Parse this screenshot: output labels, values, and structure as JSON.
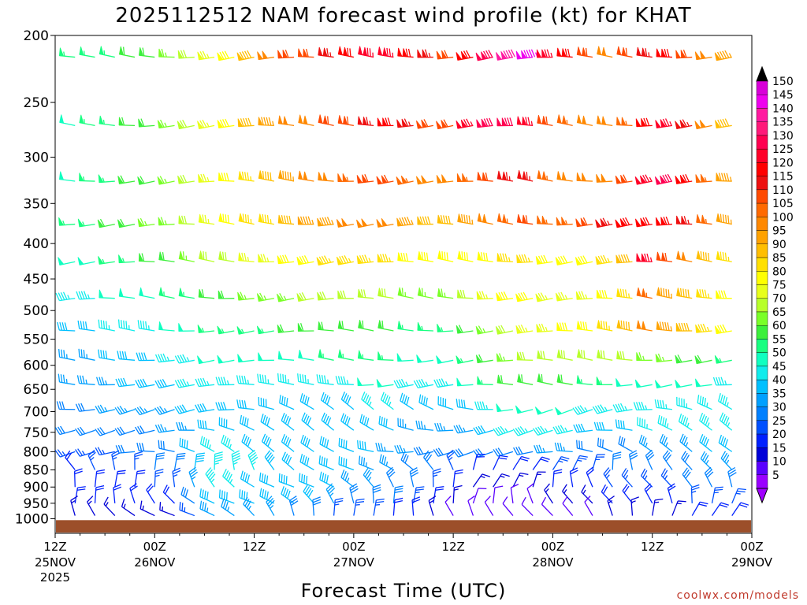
{
  "chart_data": {
    "type": "wind-profile",
    "title": "2025112512 NAM forecast wind profile (kt) for KHAT",
    "xlabel": "Forecast Time (UTC)",
    "credit": "coolwx.com/models",
    "y_ticks": [
      "200",
      "250",
      "300",
      "350",
      "400",
      "450",
      "500",
      "550",
      "600",
      "650",
      "700",
      "750",
      "800",
      "850",
      "900",
      "950",
      "1000"
    ],
    "x_ticks": [
      {
        "time": "12Z",
        "date": "25NOV",
        "year": "2025"
      },
      {
        "time": "00Z",
        "date": "26NOV",
        "year": ""
      },
      {
        "time": "12Z",
        "date": "",
        "year": ""
      },
      {
        "time": "00Z",
        "date": "27NOV",
        "year": ""
      },
      {
        "time": "12Z",
        "date": "",
        "year": ""
      },
      {
        "time": "00Z",
        "date": "28NOV",
        "year": ""
      },
      {
        "time": "12Z",
        "date": "",
        "year": ""
      },
      {
        "time": "00Z",
        "date": "29NOV",
        "year": ""
      }
    ],
    "colorbar_labels": [
      "150",
      "145",
      "140",
      "135",
      "130",
      "125",
      "120",
      "115",
      "110",
      "105",
      "100",
      "95",
      "90",
      "85",
      "80",
      "75",
      "70",
      "65",
      "60",
      "55",
      "50",
      "45",
      "40",
      "35",
      "30",
      "25",
      "20",
      "15",
      "10",
      "5"
    ],
    "colorbar_colors": [
      "#d800d8",
      "#ee00ee",
      "#ff1aa0",
      "#ff1a7a",
      "#ff0050",
      "#ff0028",
      "#ff0000",
      "#ee1010",
      "#ff4a00",
      "#ff6a00",
      "#ff8800",
      "#ffa200",
      "#ffbe00",
      "#ffe000",
      "#ffff00",
      "#e8ff1a",
      "#b8ff2a",
      "#7aff28",
      "#3cf03c",
      "#18ff80",
      "#10ffc0",
      "#10ecec",
      "#00c0ff",
      "#00a0ff",
      "#0080ff",
      "#0050ff",
      "#0020ff",
      "#0000d8",
      "#5a00ff",
      "#9a00ff"
    ],
    "y_range": [
      200,
      1050
    ],
    "x_range_hours": [
      0,
      84
    ],
    "pressure_levels": [
      215,
      270,
      325,
      375,
      425,
      480,
      535,
      590,
      640,
      695,
      745,
      800,
      850,
      900,
      950,
      990
    ],
    "speed_profile_kt": [
      [
        50,
        55,
        55,
        55,
        60,
        60,
        65,
        70,
        75,
        80,
        90,
        100,
        110,
        110,
        115,
        120,
        125,
        125,
        120,
        115,
        110,
        120,
        130,
        140,
        145,
        125,
        120,
        110,
        100,
        110,
        115,
        120,
        110,
        100,
        95,
        90
      ],
      [
        50,
        50,
        55,
        55,
        60,
        60,
        65,
        70,
        75,
        80,
        90,
        95,
        100,
        100,
        110,
        110,
        115,
        120,
        115,
        110,
        110,
        125,
        130,
        130,
        125,
        110,
        105,
        100,
        100,
        105,
        120,
        125,
        115,
        100,
        90,
        85
      ],
      [
        50,
        50,
        55,
        55,
        60,
        60,
        65,
        70,
        75,
        80,
        85,
        90,
        95,
        100,
        100,
        105,
        110,
        110,
        105,
        100,
        100,
        105,
        110,
        115,
        115,
        105,
        100,
        100,
        100,
        110,
        125,
        130,
        120,
        105,
        95,
        90
      ],
      [
        55,
        55,
        55,
        60,
        60,
        65,
        65,
        70,
        75,
        80,
        85,
        85,
        90,
        95,
        95,
        100,
        100,
        100,
        95,
        90,
        90,
        95,
        100,
        105,
        110,
        105,
        105,
        110,
        115,
        120,
        120,
        120,
        115,
        105,
        95,
        90
      ],
      [
        50,
        50,
        50,
        55,
        55,
        60,
        60,
        65,
        70,
        70,
        75,
        75,
        80,
        80,
        85,
        85,
        85,
        85,
        80,
        80,
        80,
        80,
        80,
        85,
        85,
        80,
        80,
        80,
        85,
        90,
        125,
        110,
        100,
        90,
        85,
        80
      ],
      [
        45,
        45,
        45,
        50,
        50,
        50,
        55,
        55,
        60,
        60,
        65,
        65,
        65,
        70,
        70,
        70,
        70,
        70,
        65,
        65,
        65,
        70,
        75,
        80,
        80,
        75,
        75,
        75,
        80,
        85,
        105,
        95,
        90,
        85,
        80,
        75
      ],
      [
        40,
        40,
        40,
        45,
        45,
        45,
        50,
        50,
        55,
        55,
        55,
        55,
        60,
        60,
        60,
        60,
        60,
        60,
        55,
        55,
        55,
        60,
        65,
        70,
        75,
        75,
        80,
        80,
        85,
        90,
        100,
        95,
        90,
        85,
        80,
        75
      ],
      [
        35,
        35,
        35,
        40,
        40,
        40,
        45,
        45,
        50,
        50,
        50,
        50,
        50,
        50,
        55,
        55,
        55,
        55,
        50,
        50,
        50,
        55,
        60,
        65,
        70,
        70,
        70,
        70,
        70,
        70,
        65,
        65,
        60,
        60,
        55,
        55
      ],
      [
        35,
        35,
        35,
        35,
        40,
        40,
        40,
        45,
        45,
        45,
        45,
        45,
        45,
        45,
        45,
        45,
        50,
        50,
        45,
        45,
        45,
        50,
        55,
        60,
        60,
        60,
        60,
        55,
        55,
        50,
        50,
        50,
        50,
        50,
        45,
        45
      ],
      [
        30,
        30,
        30,
        35,
        35,
        35,
        35,
        40,
        40,
        40,
        40,
        40,
        40,
        40,
        40,
        40,
        45,
        45,
        40,
        40,
        40,
        40,
        45,
        50,
        50,
        50,
        50,
        45,
        45,
        45,
        45,
        45,
        45,
        45,
        45,
        45
      ],
      [
        25,
        30,
        30,
        30,
        30,
        30,
        35,
        35,
        40,
        40,
        40,
        40,
        40,
        40,
        40,
        40,
        40,
        40,
        35,
        35,
        35,
        35,
        40,
        45,
        45,
        45,
        45,
        40,
        40,
        40,
        45,
        45,
        45,
        45,
        45,
        45
      ],
      [
        20,
        25,
        25,
        25,
        30,
        30,
        30,
        40,
        45,
        45,
        40,
        40,
        40,
        40,
        40,
        40,
        40,
        35,
        35,
        30,
        30,
        30,
        30,
        30,
        30,
        35,
        35,
        30,
        30,
        30,
        35,
        35,
        35,
        40,
        40,
        40
      ],
      [
        20,
        20,
        25,
        25,
        25,
        30,
        30,
        40,
        45,
        45,
        45,
        40,
        40,
        40,
        40,
        40,
        35,
        35,
        30,
        30,
        25,
        20,
        20,
        20,
        20,
        25,
        25,
        25,
        30,
        30,
        30,
        30,
        30,
        35,
        35,
        35
      ],
      [
        20,
        20,
        20,
        20,
        20,
        25,
        25,
        35,
        45,
        45,
        40,
        40,
        40,
        40,
        40,
        35,
        35,
        30,
        30,
        25,
        20,
        15,
        15,
        15,
        15,
        20,
        20,
        20,
        25,
        25,
        25,
        25,
        30,
        30,
        30,
        30
      ],
      [
        20,
        20,
        20,
        20,
        20,
        20,
        20,
        30,
        40,
        40,
        40,
        40,
        40,
        40,
        35,
        30,
        30,
        30,
        25,
        20,
        15,
        10,
        10,
        10,
        10,
        15,
        15,
        15,
        20,
        20,
        20,
        20,
        25,
        25,
        25,
        25
      ],
      [
        15,
        15,
        15,
        15,
        15,
        15,
        15,
        25,
        35,
        35,
        35,
        35,
        30,
        30,
        25,
        25,
        25,
        20,
        20,
        15,
        10,
        10,
        10,
        10,
        10,
        10,
        10,
        10,
        15,
        15,
        15,
        15,
        20,
        20,
        20,
        20
      ]
    ],
    "terrain_top_hpa": 1005
  }
}
